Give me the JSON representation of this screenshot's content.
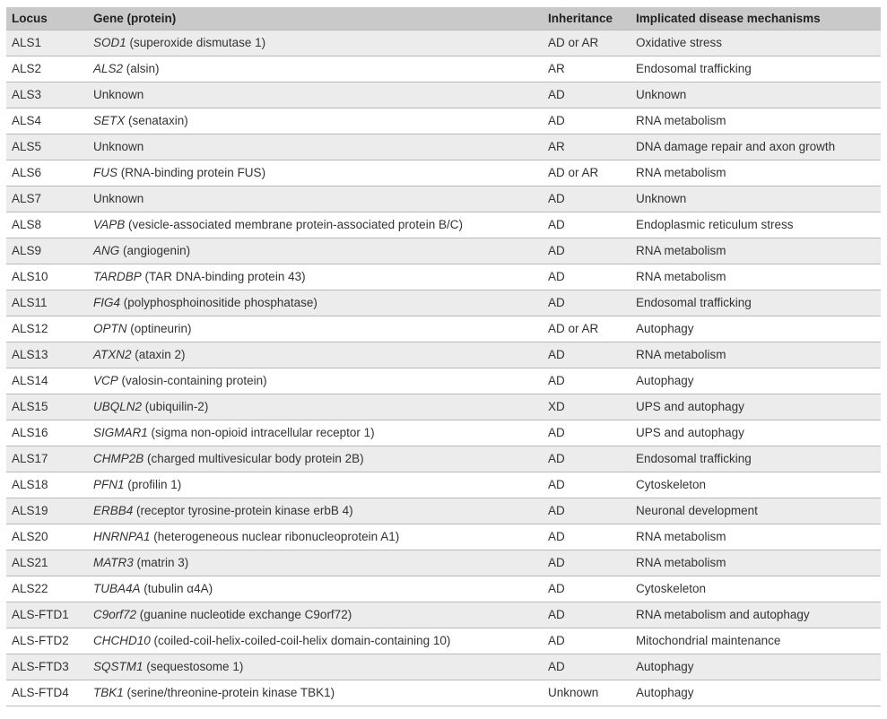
{
  "table": {
    "headers": {
      "locus": "Locus",
      "gene": "Gene (protein)",
      "inheritance": "Inheritance",
      "mechanism": "Implicated disease mechanisms"
    },
    "rows": [
      {
        "locus": "ALS1",
        "gene": "SOD1",
        "protein": " (superoxide dismutase 1)",
        "inheritance": "AD or AR",
        "mechanism": "Oxidative stress"
      },
      {
        "locus": "ALS2",
        "gene": "ALS2",
        "protein": " (alsin)",
        "inheritance": "AR",
        "mechanism": "Endosomal trafficking"
      },
      {
        "locus": "ALS3",
        "gene": "",
        "protein": "Unknown",
        "inheritance": "AD",
        "mechanism": "Unknown"
      },
      {
        "locus": "ALS4",
        "gene": "SETX",
        "protein": " (senataxin)",
        "inheritance": "AD",
        "mechanism": "RNA metabolism"
      },
      {
        "locus": "ALS5",
        "gene": "",
        "protein": "Unknown",
        "inheritance": "AR",
        "mechanism": "DNA damage repair and axon growth"
      },
      {
        "locus": "ALS6",
        "gene": "FUS",
        "protein": " (RNA-binding protein FUS)",
        "inheritance": "AD or AR",
        "mechanism": "RNA metabolism"
      },
      {
        "locus": "ALS7",
        "gene": "",
        "protein": "Unknown",
        "inheritance": "AD",
        "mechanism": "Unknown"
      },
      {
        "locus": "ALS8",
        "gene": "VAPB",
        "protein": " (vesicle-associated membrane protein-associated protein B/C)",
        "inheritance": "AD",
        "mechanism": "Endoplasmic reticulum stress"
      },
      {
        "locus": "ALS9",
        "gene": "ANG",
        "protein": " (angiogenin)",
        "inheritance": "AD",
        "mechanism": "RNA metabolism"
      },
      {
        "locus": "ALS10",
        "gene": "TARDBP",
        "protein": " (TAR DNA-binding protein 43)",
        "inheritance": "AD",
        "mechanism": "RNA metabolism"
      },
      {
        "locus": "ALS11",
        "gene": "FIG4",
        "protein": " (polyphosphoinositide phosphatase)",
        "inheritance": "AD",
        "mechanism": "Endosomal trafficking"
      },
      {
        "locus": "ALS12",
        "gene": "OPTN",
        "protein": " (optineurin)",
        "inheritance": "AD or AR",
        "mechanism": "Autophagy"
      },
      {
        "locus": "ALS13",
        "gene": "ATXN2",
        "protein": " (ataxin 2)",
        "inheritance": "AD",
        "mechanism": "RNA metabolism"
      },
      {
        "locus": "ALS14",
        "gene": "VCP",
        "protein": " (valosin-containing protein)",
        "inheritance": "AD",
        "mechanism": "Autophagy"
      },
      {
        "locus": "ALS15",
        "gene": "UBQLN2",
        "protein": " (ubiquilin-2)",
        "inheritance": "XD",
        "mechanism": "UPS and autophagy"
      },
      {
        "locus": "ALS16",
        "gene": "SIGMAR1",
        "protein": " (sigma non-opioid intracellular receptor 1)",
        "inheritance": "AD",
        "mechanism": "UPS and autophagy"
      },
      {
        "locus": "ALS17",
        "gene": "CHMP2B",
        "protein": " (charged multivesicular body protein 2B)",
        "inheritance": "AD",
        "mechanism": "Endosomal trafficking"
      },
      {
        "locus": "ALS18",
        "gene": "PFN1",
        "protein": " (profilin 1)",
        "inheritance": "AD",
        "mechanism": "Cytoskeleton"
      },
      {
        "locus": "ALS19",
        "gene": "ERBB4",
        "protein": " (receptor tyrosine-protein kinase erbB 4)",
        "inheritance": "AD",
        "mechanism": "Neuronal development"
      },
      {
        "locus": "ALS20",
        "gene": "HNRNPA1",
        "protein": " (heterogeneous nuclear ribonucleoprotein A1)",
        "inheritance": "AD",
        "mechanism": "RNA metabolism"
      },
      {
        "locus": "ALS21",
        "gene": "MATR3",
        "protein": " (matrin 3)",
        "inheritance": "AD",
        "mechanism": "RNA metabolism"
      },
      {
        "locus": "ALS22",
        "gene": "TUBA4A",
        "protein": " (tubulin α4A)",
        "inheritance": "AD",
        "mechanism": "Cytoskeleton"
      },
      {
        "locus": "ALS-FTD1",
        "gene": "C9orf72",
        "protein": " (guanine nucleotide exchange C9orf72)",
        "inheritance": "AD",
        "mechanism": "RNA metabolism and autophagy"
      },
      {
        "locus": "ALS-FTD2",
        "gene": "CHCHD10",
        "protein": " (coiled-coil-helix-coiled-coil-helix domain-containing 10)",
        "inheritance": "AD",
        "mechanism": "Mitochondrial maintenance"
      },
      {
        "locus": "ALS-FTD3",
        "gene": "SQSTM1",
        "protein": " (sequestosome 1)",
        "inheritance": "AD",
        "mechanism": "Autophagy"
      },
      {
        "locus": "ALS-FTD4",
        "gene": "TBK1",
        "protein": " (serine/threonine-protein kinase TBK1)",
        "inheritance": "Unknown",
        "mechanism": "Autophagy"
      }
    ]
  }
}
